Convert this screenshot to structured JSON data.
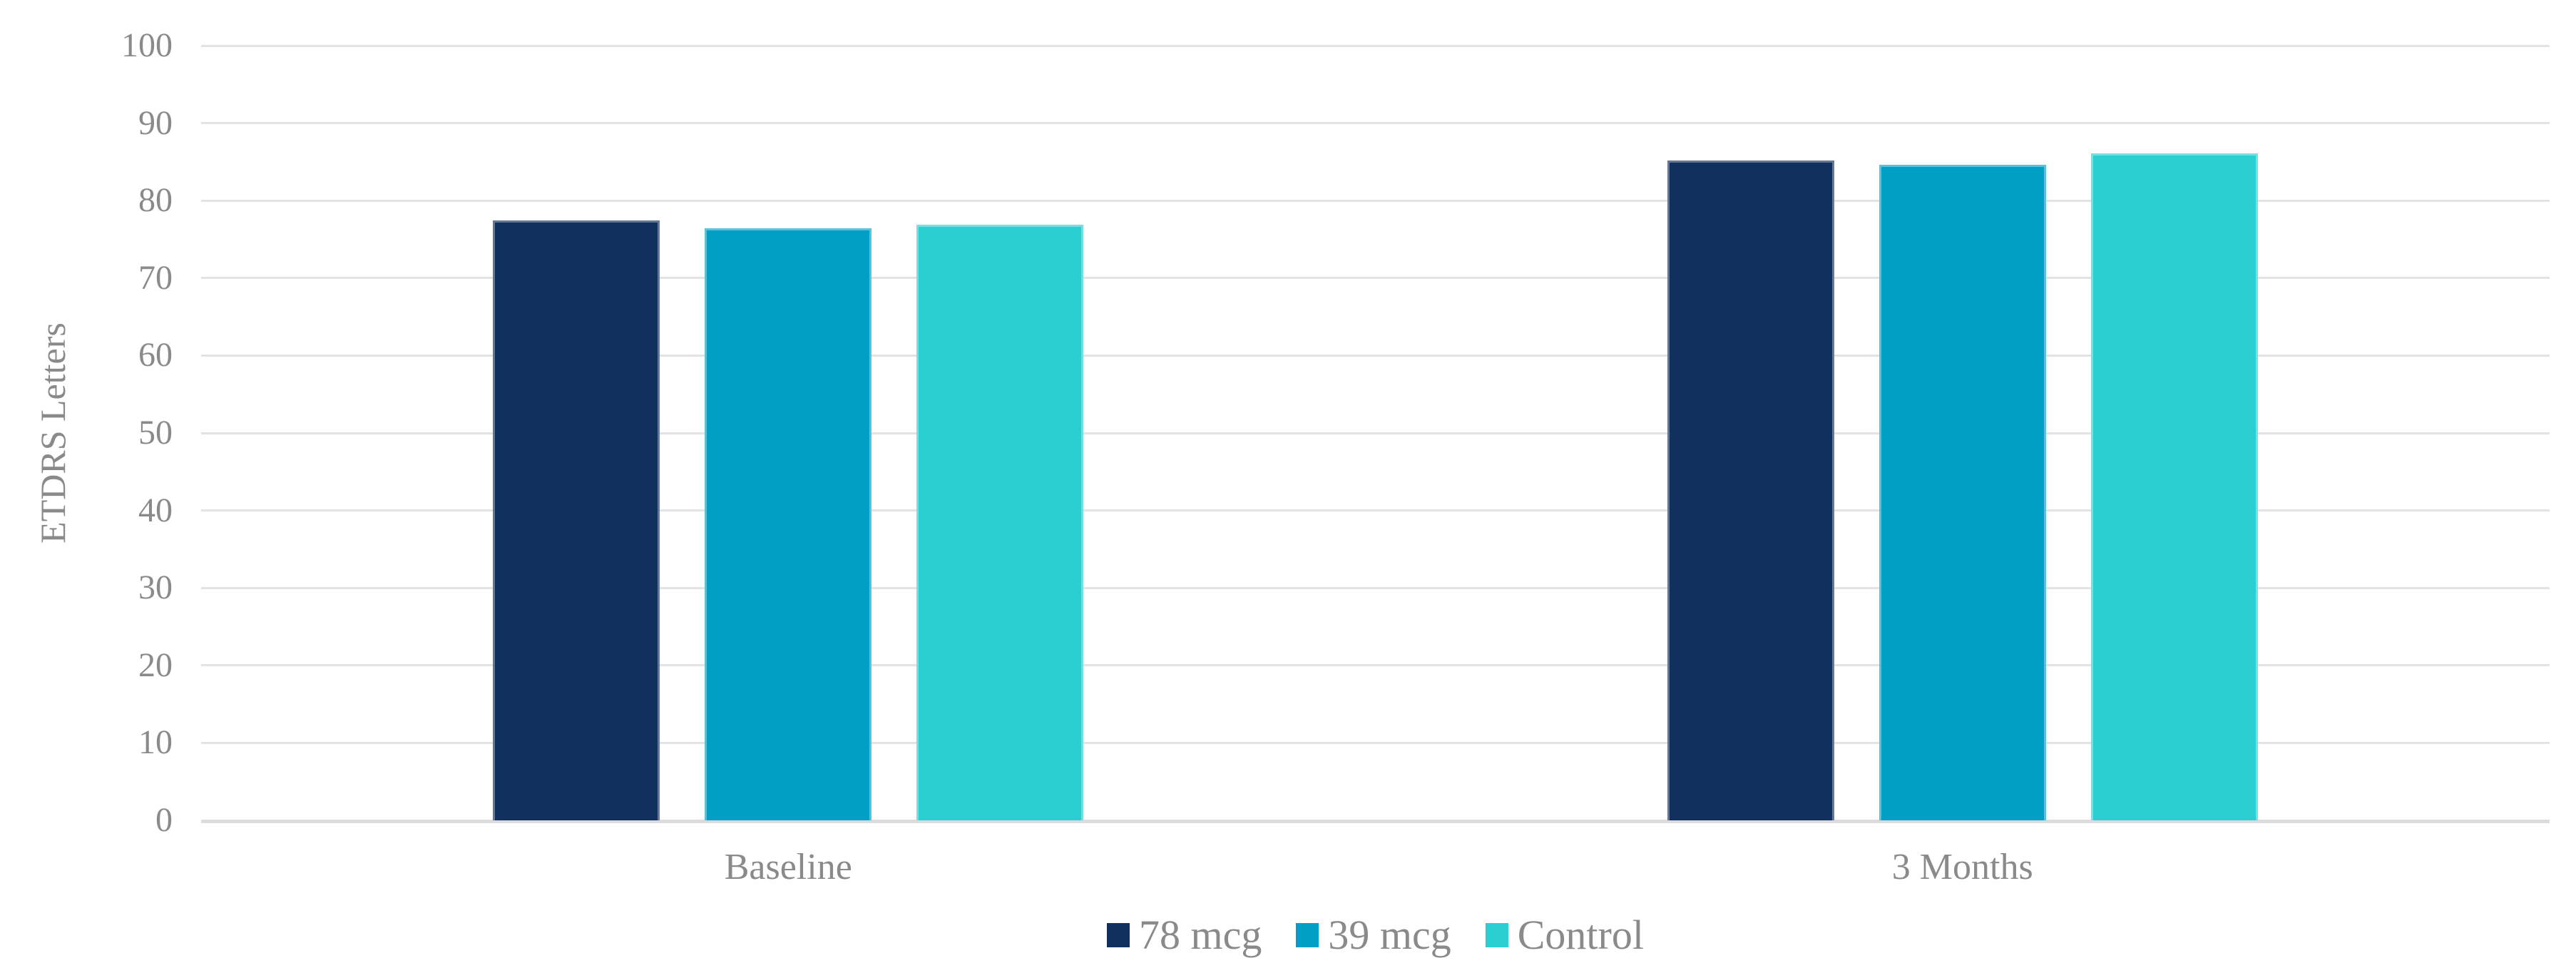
{
  "chart_data": {
    "type": "bar",
    "title": "",
    "categories": [
      "Baseline",
      "3 Months"
    ],
    "series": [
      {
        "name": "78 mcg",
        "color": "#12305E",
        "values": [
          77.4,
          85.2
        ]
      },
      {
        "name": "39 mcg",
        "color": "#00A0C6",
        "values": [
          76.4,
          84.6
        ]
      },
      {
        "name": "Control",
        "color": "#2ACFD1",
        "values": [
          76.9,
          86.1
        ]
      }
    ],
    "xlabel": "",
    "ylabel": "ETDRS Letters",
    "ylim": [
      0,
      100
    ],
    "yticks": [
      0,
      10,
      20,
      30,
      40,
      50,
      60,
      70,
      80,
      90,
      100
    ],
    "grid": true,
    "legend_position": "bottom-center"
  },
  "styles": {
    "background": "#FFFFFF",
    "text_color": "#8A8A8A",
    "gridline_color": "#E3E3E3",
    "axis_line_color": "#DCDCDC"
  }
}
